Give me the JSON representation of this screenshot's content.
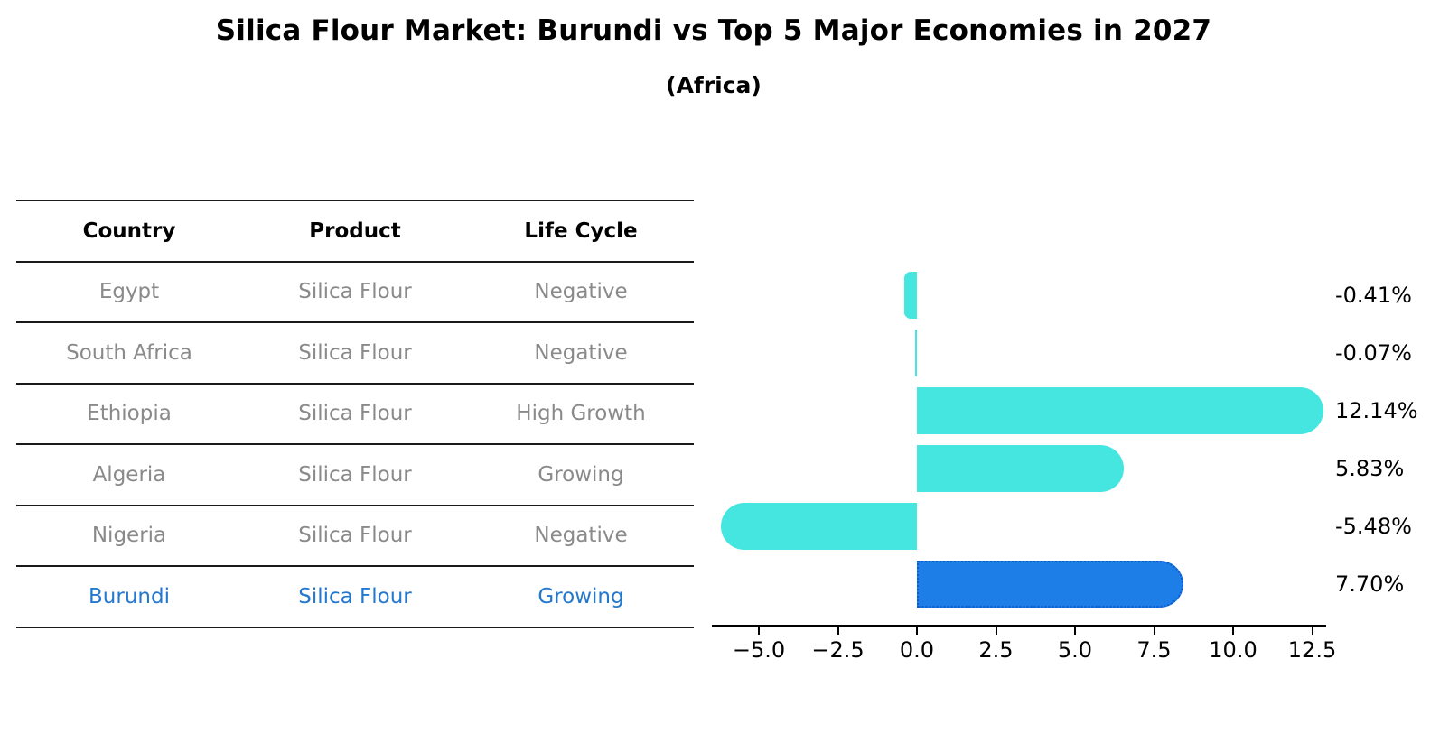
{
  "title": "Silica Flour Market: Burundi vs Top 5 Major Economies in 2027",
  "subtitle": "(Africa)",
  "table": {
    "headers": [
      "Country",
      "Product",
      "Life Cycle"
    ],
    "rows": [
      {
        "country": "Egypt",
        "product": "Silica Flour",
        "life_cycle": "Negative",
        "highlighted": false
      },
      {
        "country": "South Africa",
        "product": "Silica Flour",
        "life_cycle": "Negative",
        "highlighted": false
      },
      {
        "country": "Ethiopia",
        "product": "Silica Flour",
        "life_cycle": "High Growth",
        "highlighted": false
      },
      {
        "country": "Algeria",
        "product": "Silica Flour",
        "life_cycle": "Growing",
        "highlighted": false
      },
      {
        "country": "Nigeria",
        "product": "Silica Flour",
        "life_cycle": "Negative",
        "highlighted": false
      },
      {
        "country": "Burundi",
        "product": "Silica Flour",
        "life_cycle": "Growing",
        "highlighted": true
      }
    ]
  },
  "chart_data": {
    "type": "bar",
    "orientation": "horizontal",
    "title": "Silica Flour Market: Burundi vs Top 5 Major Economies in 2027 (Africa)",
    "categories": [
      "Egypt",
      "South Africa",
      "Ethiopia",
      "Algeria",
      "Nigeria",
      "Burundi"
    ],
    "values": [
      -0.41,
      -0.07,
      12.14,
      5.83,
      -5.48,
      7.7
    ],
    "value_labels": [
      "-0.41%",
      "-0.07%",
      "12.14%",
      "5.83%",
      "-5.48%",
      "7.70%"
    ],
    "x_ticks": [
      -5.0,
      -2.5,
      0.0,
      2.5,
      5.0,
      7.5,
      10.0,
      12.5
    ],
    "x_tick_labels": [
      "−5.0",
      "−2.5",
      "0.0",
      "2.5",
      "5.0",
      "7.5",
      "10.0",
      "12.5"
    ],
    "xlim": [
      -6.5,
      12.95
    ],
    "grid": false,
    "legend": "none",
    "highlight_index": 5,
    "colors": {
      "default_bar": "#45e6e0",
      "highlight_bar": "#1e7ee8",
      "highlight_border": "#0d5ac8",
      "highlight_text": "#2478ce",
      "table_text": "#8a8a8a",
      "axis": "#000000"
    }
  }
}
